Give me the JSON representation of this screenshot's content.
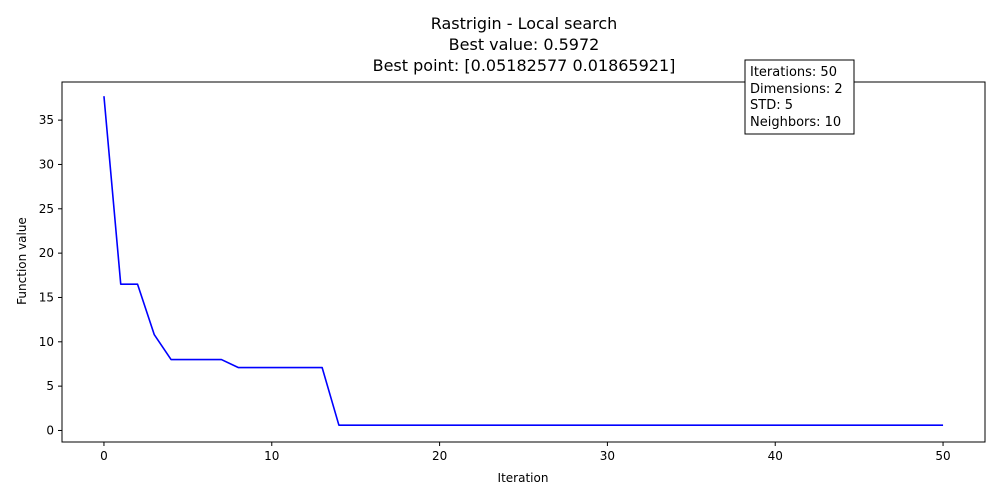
{
  "chart_data": {
    "type": "line",
    "title_lines": [
      "Rastrigin - Local search",
      "Best value: 0.5972",
      "Best point: [0.05182577 0.01865921]"
    ],
    "xlabel": "Iteration",
    "ylabel": "Function value",
    "xlim": [
      -2.5,
      52.5
    ],
    "ylim": [
      -1.3,
      39.3
    ],
    "xticks": [
      0,
      10,
      20,
      30,
      40,
      50
    ],
    "yticks": [
      0,
      5,
      10,
      15,
      20,
      25,
      30,
      35
    ],
    "grid": false,
    "line_color": "#0000ff",
    "series": [
      {
        "x": [
          0,
          1,
          2,
          3,
          4,
          5,
          6,
          7,
          8,
          9,
          10,
          11,
          12,
          13,
          14,
          15,
          16,
          17,
          18,
          19,
          20,
          21,
          22,
          23,
          24,
          25,
          26,
          27,
          28,
          29,
          30,
          31,
          32,
          33,
          34,
          35,
          36,
          37,
          38,
          39,
          40,
          41,
          42,
          43,
          44,
          45,
          46,
          47,
          48,
          49,
          50
        ],
        "values": [
          37.7,
          16.5,
          16.5,
          10.8,
          8.0,
          8.0,
          8.0,
          8.0,
          7.1,
          7.1,
          7.1,
          7.1,
          7.1,
          7.1,
          0.5972,
          0.5972,
          0.5972,
          0.5972,
          0.5972,
          0.5972,
          0.5972,
          0.5972,
          0.5972,
          0.5972,
          0.5972,
          0.5972,
          0.5972,
          0.5972,
          0.5972,
          0.5972,
          0.5972,
          0.5972,
          0.5972,
          0.5972,
          0.5972,
          0.5972,
          0.5972,
          0.5972,
          0.5972,
          0.5972,
          0.5972,
          0.5972,
          0.5972,
          0.5972,
          0.5972,
          0.5972,
          0.5972,
          0.5972,
          0.5972,
          0.5972,
          0.5972
        ]
      }
    ],
    "info_box": {
      "placement": "top-right",
      "lines": [
        "Iterations: 50",
        "Dimensions: 2",
        "STD: 5",
        "Neighbors: 10"
      ]
    }
  }
}
